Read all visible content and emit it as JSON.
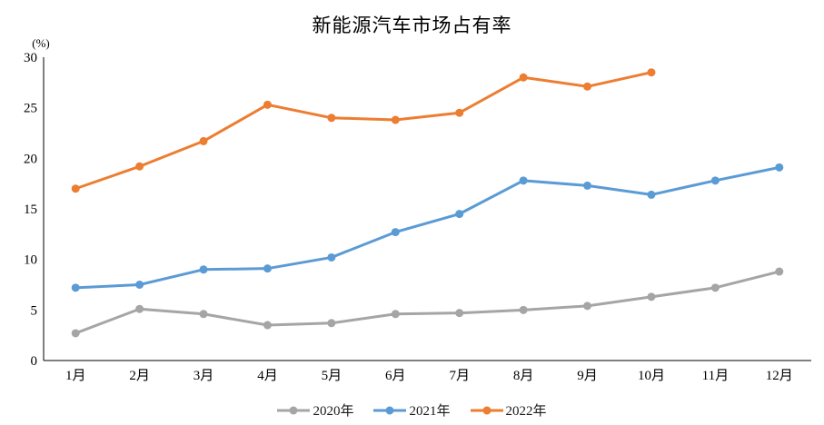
{
  "chart_data": {
    "type": "line",
    "title": "新能源汽车市场占有率",
    "ylabel": "(%)",
    "xlabel": "",
    "ylim": [
      0,
      30
    ],
    "y_ticks": [
      0,
      5,
      10,
      15,
      20,
      25,
      30
    ],
    "grid": false,
    "legend_position": "bottom",
    "categories": [
      "1月",
      "2月",
      "3月",
      "4月",
      "5月",
      "6月",
      "7月",
      "8月",
      "9月",
      "10月",
      "11月",
      "12月"
    ],
    "series": [
      {
        "name": "2020年",
        "color": "#A5A5A5",
        "values": [
          2.7,
          5.1,
          4.6,
          3.5,
          3.7,
          4.6,
          4.7,
          5.0,
          5.4,
          6.3,
          7.2,
          8.8
        ]
      },
      {
        "name": "2021年",
        "color": "#5B9BD5",
        "values": [
          7.2,
          7.5,
          9.0,
          9.1,
          10.2,
          12.7,
          14.5,
          17.8,
          17.3,
          16.4,
          17.8,
          19.1
        ]
      },
      {
        "name": "2022年",
        "color": "#ED7D31",
        "values": [
          17.0,
          19.2,
          21.7,
          25.3,
          24.0,
          23.8,
          24.5,
          28.0,
          27.1,
          28.5,
          null,
          null
        ]
      }
    ],
    "axis_color": "#000000"
  }
}
